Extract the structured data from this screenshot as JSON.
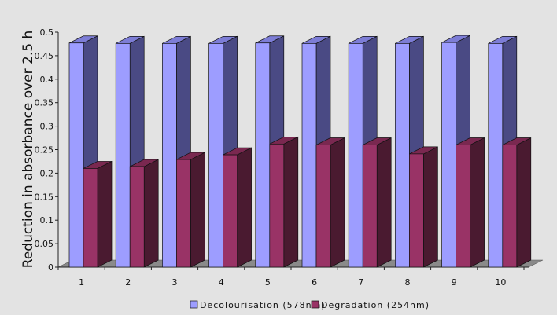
{
  "chart_data": {
    "type": "bar",
    "style": "3d-clustered-column",
    "categories": [
      "1",
      "2",
      "3",
      "4",
      "5",
      "6",
      "7",
      "8",
      "9",
      "10"
    ],
    "series": [
      {
        "name": "Decolourisation (578nm)",
        "values": [
          0.477,
          0.476,
          0.476,
          0.476,
          0.477,
          0.476,
          0.476,
          0.476,
          0.478,
          0.476
        ],
        "color_front": "#9d9dff",
        "color_side": "#4a4a84",
        "color_top": "#7d7dd6"
      },
      {
        "name": "Degradation (254nm)",
        "values": [
          0.21,
          0.214,
          0.229,
          0.239,
          0.262,
          0.26,
          0.26,
          0.241,
          0.26,
          0.26
        ],
        "color_front": "#993366",
        "color_side": "#4a1a30",
        "color_top": "#7a2850"
      }
    ],
    "y_ticks": [
      "0",
      "0.05",
      "0.1",
      "0.15",
      "0.2",
      "0.25",
      "0.3",
      "0.35",
      "0.4",
      "0.45",
      "0.5"
    ],
    "ylim": [
      0,
      0.5
    ],
    "title": "",
    "xlabel": "",
    "ylabel": "Reduction in absorbance over 2.5 h",
    "legend_position": "bottom",
    "grid": false,
    "floor_color": "#8a8a8a"
  }
}
